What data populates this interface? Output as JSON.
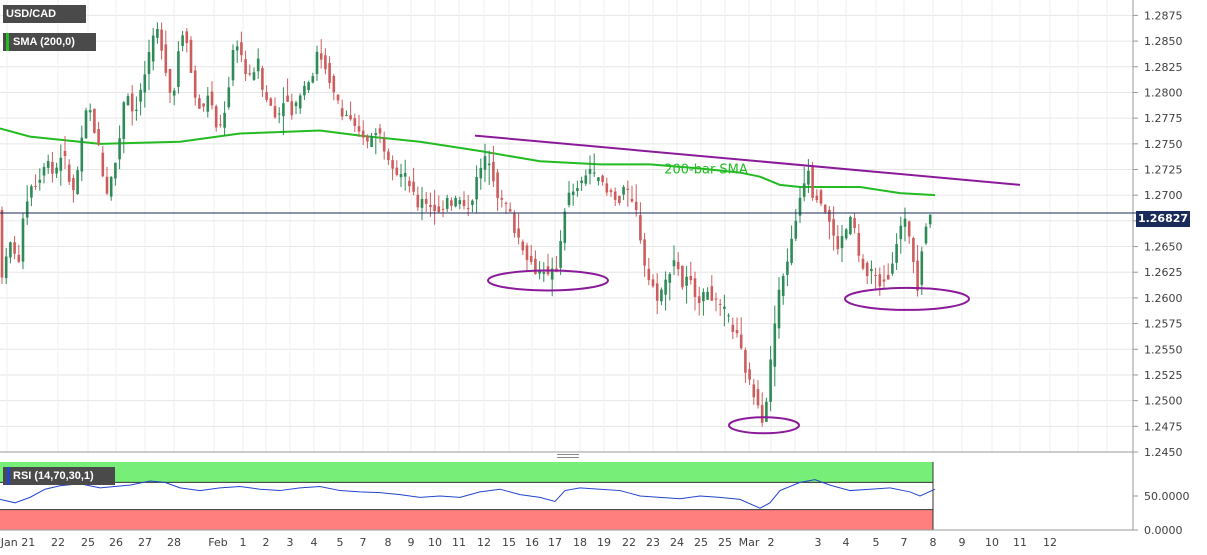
{
  "instrument": {
    "symbol": "USD/CAD",
    "indicator": "SMA (200,0)",
    "rsi_label": "RSI (14,70,30,1)"
  },
  "colors": {
    "up": "#2e8b57",
    "down": "#cd5c5c",
    "sma": "#22bb22",
    "trend": "#8b1a9b",
    "rsi": "#2244cc",
    "circle": "#8b1a9b",
    "panel_label_bg": "#4a4a4a",
    "rsi_high": "#77ee77",
    "rsi_low": "#ff7f7f"
  },
  "chart_data": {
    "type": "candlestick",
    "price_axis": {
      "ticks": [
        "1.2875",
        "1.2850",
        "1.2825",
        "1.2800",
        "1.2775",
        "1.2750",
        "1.2725",
        "1.2700",
        "1.2675",
        "1.2650",
        "1.2625",
        "1.2600",
        "1.2575",
        "1.2550",
        "1.2525",
        "1.2500",
        "1.2475",
        "1.2450"
      ],
      "range": [
        1.245,
        1.289
      ]
    },
    "current_price": "1.26827",
    "x_labels": [
      "Jan 21",
      "22",
      "25",
      "26",
      "27",
      "28",
      "Feb",
      "1",
      "2",
      "3",
      "4",
      "5",
      "7",
      "8",
      "9",
      "10",
      "11",
      "12",
      "15",
      "16",
      "17",
      "18",
      "19",
      "22",
      "23",
      "24",
      "25",
      "25",
      "Mar",
      "2",
      "3",
      "4",
      "5",
      "7",
      "8",
      "9",
      "10",
      "11",
      "12"
    ],
    "price_path": [
      [
        0,
        1.264
      ],
      [
        5,
        1.262
      ],
      [
        10,
        1.2645
      ],
      [
        15,
        1.266
      ],
      [
        20,
        1.262
      ],
      [
        25,
        1.268
      ],
      [
        30,
        1.27
      ],
      [
        35,
        1.2715
      ],
      [
        40,
        1.271
      ],
      [
        45,
        1.273
      ],
      [
        50,
        1.2735
      ],
      [
        55,
        1.272
      ],
      [
        60,
        1.273
      ],
      [
        65,
        1.2745
      ],
      [
        70,
        1.272
      ],
      [
        75,
        1.27
      ],
      [
        80,
        1.2725
      ],
      [
        85,
        1.276
      ],
      [
        90,
        1.279
      ],
      [
        95,
        1.277
      ],
      [
        100,
        1.275
      ],
      [
        105,
        1.272
      ],
      [
        110,
        1.27
      ],
      [
        115,
        1.2725
      ],
      [
        120,
        1.274
      ],
      [
        125,
        1.279
      ],
      [
        130,
        1.28
      ],
      [
        135,
        1.278
      ],
      [
        140,
        1.279
      ],
      [
        145,
        1.281
      ],
      [
        150,
        1.283
      ],
      [
        155,
        1.285
      ],
      [
        160,
        1.286
      ],
      [
        165,
        1.284
      ],
      [
        170,
        1.281
      ],
      [
        175,
        1.279
      ],
      [
        180,
        1.284
      ],
      [
        185,
        1.286
      ],
      [
        190,
        1.285
      ],
      [
        195,
        1.28
      ],
      [
        200,
        1.279
      ],
      [
        205,
        1.278
      ],
      [
        210,
        1.28
      ],
      [
        215,
        1.278
      ],
      [
        220,
        1.276
      ],
      [
        225,
        1.2775
      ],
      [
        230,
        1.28
      ],
      [
        235,
        1.284
      ],
      [
        240,
        1.285
      ],
      [
        245,
        1.283
      ],
      [
        250,
        1.281
      ],
      [
        255,
        1.282
      ],
      [
        260,
        1.283
      ],
      [
        265,
        1.28
      ],
      [
        270,
        1.279
      ],
      [
        275,
        1.2785
      ],
      [
        280,
        1.2775
      ],
      [
        285,
        1.2795
      ],
      [
        290,
        1.279
      ],
      [
        295,
        1.278
      ],
      [
        300,
        1.2795
      ],
      [
        305,
        1.2805
      ],
      [
        310,
        1.281
      ],
      [
        315,
        1.282
      ],
      [
        320,
        1.284
      ],
      [
        325,
        1.283
      ],
      [
        330,
        1.282
      ],
      [
        335,
        1.28
      ],
      [
        340,
        1.279
      ],
      [
        345,
        1.2775
      ],
      [
        350,
        1.278
      ],
      [
        355,
        1.2765
      ],
      [
        360,
        1.276
      ],
      [
        365,
        1.276
      ],
      [
        370,
        1.275
      ],
      [
        375,
        1.276
      ],
      [
        380,
        1.2765
      ],
      [
        385,
        1.275
      ],
      [
        390,
        1.274
      ],
      [
        395,
        1.273
      ],
      [
        400,
        1.272
      ],
      [
        405,
        1.272
      ],
      [
        410,
        1.2715
      ],
      [
        415,
        1.27
      ],
      [
        420,
        1.269
      ],
      [
        425,
        1.27
      ],
      [
        430,
        1.269
      ],
      [
        435,
        1.269
      ],
      [
        440,
        1.268
      ],
      [
        445,
        1.269
      ],
      [
        450,
        1.27
      ],
      [
        455,
        1.269
      ],
      [
        460,
        1.27
      ],
      [
        465,
        1.2685
      ],
      [
        470,
        1.269
      ],
      [
        475,
        1.27
      ],
      [
        480,
        1.272
      ],
      [
        485,
        1.273
      ],
      [
        490,
        1.274
      ],
      [
        495,
        1.272
      ],
      [
        500,
        1.27
      ],
      [
        505,
        1.269
      ],
      [
        510,
        1.269
      ],
      [
        515,
        1.267
      ],
      [
        520,
        1.266
      ],
      [
        525,
        1.265
      ],
      [
        530,
        1.264
      ],
      [
        535,
        1.263
      ],
      [
        540,
        1.2625
      ],
      [
        545,
        1.263
      ],
      [
        550,
        1.262
      ],
      [
        555,
        1.2625
      ],
      [
        560,
        1.263
      ],
      [
        565,
        1.268
      ],
      [
        570,
        1.27
      ],
      [
        575,
        1.27
      ],
      [
        580,
        1.271
      ],
      [
        585,
        1.271
      ],
      [
        590,
        1.273
      ],
      [
        595,
        1.272
      ],
      [
        600,
        1.2715
      ],
      [
        605,
        1.271
      ],
      [
        610,
        1.27
      ],
      [
        615,
        1.2705
      ],
      [
        620,
        1.269
      ],
      [
        625,
        1.271
      ],
      [
        630,
        1.27
      ],
      [
        635,
        1.269
      ],
      [
        640,
        1.268
      ],
      [
        645,
        1.264
      ],
      [
        650,
        1.262
      ],
      [
        655,
        1.261
      ],
      [
        660,
        1.26
      ],
      [
        665,
        1.261
      ],
      [
        670,
        1.262
      ],
      [
        675,
        1.264
      ],
      [
        680,
        1.263
      ],
      [
        685,
        1.261
      ],
      [
        690,
        1.262
      ],
      [
        695,
        1.261
      ],
      [
        700,
        1.26
      ],
      [
        705,
        1.26
      ],
      [
        710,
        1.261
      ],
      [
        715,
        1.26
      ],
      [
        720,
        1.259
      ],
      [
        725,
        1.259
      ],
      [
        730,
        1.258
      ],
      [
        735,
        1.257
      ],
      [
        740,
        1.256
      ],
      [
        745,
        1.254
      ],
      [
        750,
        1.252
      ],
      [
        755,
        1.251
      ],
      [
        760,
        1.25
      ],
      [
        765,
        1.248
      ],
      [
        770,
        1.251
      ],
      [
        775,
        1.256
      ],
      [
        780,
        1.26
      ],
      [
        785,
        1.262
      ],
      [
        790,
        1.264
      ],
      [
        795,
        1.266
      ],
      [
        800,
        1.269
      ],
      [
        805,
        1.271
      ],
      [
        810,
        1.273
      ],
      [
        815,
        1.27
      ],
      [
        820,
        1.27
      ],
      [
        825,
        1.269
      ],
      [
        830,
        1.268
      ],
      [
        835,
        1.266
      ],
      [
        840,
        1.265
      ],
      [
        845,
        1.266
      ],
      [
        850,
        1.267
      ],
      [
        855,
        1.268
      ],
      [
        860,
        1.264
      ],
      [
        865,
        1.263
      ],
      [
        870,
        1.262
      ],
      [
        875,
        1.263
      ],
      [
        880,
        1.261
      ],
      [
        885,
        1.262
      ],
      [
        890,
        1.262
      ],
      [
        895,
        1.264
      ],
      [
        900,
        1.266
      ],
      [
        905,
        1.2675
      ],
      [
        910,
        1.267
      ],
      [
        915,
        1.264
      ],
      [
        920,
        1.261
      ],
      [
        925,
        1.266
      ],
      [
        930,
        1.268
      ],
      [
        935,
        1.2685
      ]
    ],
    "sma_200": [
      [
        0,
        1.2765
      ],
      [
        30,
        1.2757
      ],
      [
        100,
        1.275
      ],
      [
        180,
        1.2752
      ],
      [
        240,
        1.276
      ],
      [
        320,
        1.2763
      ],
      [
        360,
        1.2758
      ],
      [
        420,
        1.2752
      ],
      [
        480,
        1.2743
      ],
      [
        540,
        1.2733
      ],
      [
        600,
        1.273
      ],
      [
        650,
        1.273
      ],
      [
        700,
        1.2726
      ],
      [
        740,
        1.2722
      ],
      [
        760,
        1.2718
      ],
      [
        780,
        1.271
      ],
      [
        800,
        1.2708
      ],
      [
        860,
        1.2708
      ],
      [
        900,
        1.2702
      ],
      [
        935,
        1.27
      ]
    ],
    "trendline": {
      "from": [
        475,
        1.2758
      ],
      "to": [
        1020,
        1.271
      ]
    },
    "annotations": [
      {
        "text": "200-bar SMA",
        "price": 1.2718,
        "x": 706
      }
    ],
    "circles": [
      {
        "cx": 548,
        "price": 1.2617,
        "rx": 60,
        "ry": 10
      },
      {
        "cx": 907,
        "price": 1.2599,
        "rx": 62,
        "ry": 11
      },
      {
        "cx": 764,
        "price": 1.2476,
        "rx": 35,
        "ry": 8
      }
    ],
    "rsi": {
      "label": "RSI (14,70,30,1)",
      "axis": [
        "50.0000",
        "0.0000"
      ],
      "levels": {
        "overbought": 70,
        "oversold": 30
      },
      "values": [
        [
          0,
          45
        ],
        [
          15,
          40
        ],
        [
          30,
          48
        ],
        [
          45,
          60
        ],
        [
          60,
          65
        ],
        [
          80,
          68
        ],
        [
          100,
          62
        ],
        [
          130,
          66
        ],
        [
          150,
          72
        ],
        [
          165,
          70
        ],
        [
          180,
          62
        ],
        [
          200,
          58
        ],
        [
          220,
          62
        ],
        [
          240,
          64
        ],
        [
          260,
          60
        ],
        [
          280,
          58
        ],
        [
          300,
          62
        ],
        [
          320,
          64
        ],
        [
          340,
          58
        ],
        [
          360,
          56
        ],
        [
          380,
          55
        ],
        [
          400,
          52
        ],
        [
          420,
          48
        ],
        [
          440,
          50
        ],
        [
          460,
          48
        ],
        [
          480,
          56
        ],
        [
          500,
          60
        ],
        [
          520,
          52
        ],
        [
          540,
          48
        ],
        [
          555,
          42
        ],
        [
          565,
          58
        ],
        [
          580,
          62
        ],
        [
          600,
          60
        ],
        [
          620,
          58
        ],
        [
          640,
          50
        ],
        [
          660,
          48
        ],
        [
          680,
          46
        ],
        [
          700,
          50
        ],
        [
          720,
          48
        ],
        [
          740,
          45
        ],
        [
          760,
          32
        ],
        [
          770,
          40
        ],
        [
          780,
          58
        ],
        [
          800,
          70
        ],
        [
          815,
          74
        ],
        [
          830,
          66
        ],
        [
          850,
          58
        ],
        [
          870,
          60
        ],
        [
          890,
          62
        ],
        [
          910,
          56
        ],
        [
          920,
          50
        ],
        [
          935,
          60
        ]
      ]
    }
  }
}
